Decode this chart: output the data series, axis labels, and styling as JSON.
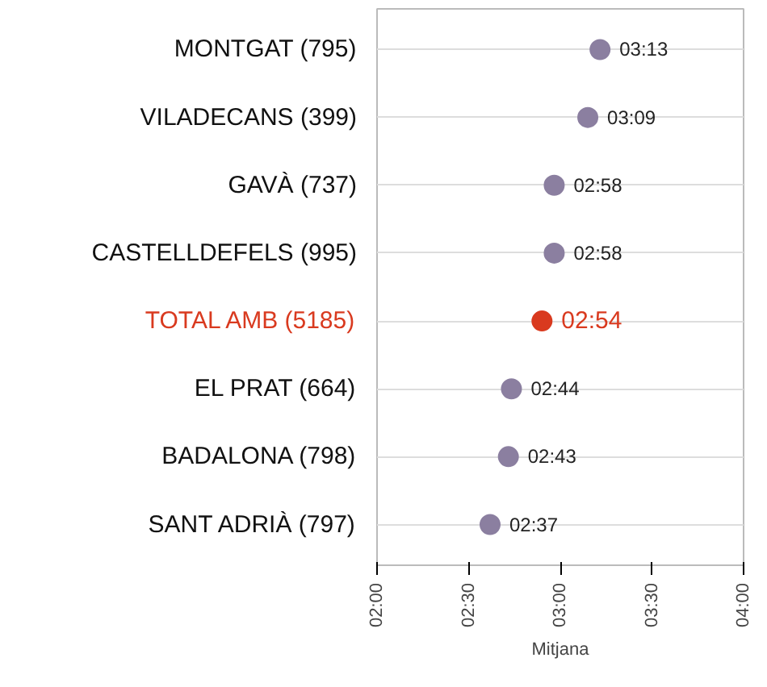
{
  "chart_data": {
    "type": "scatter",
    "xlabel": "Mitjana",
    "orientation": "horizontal",
    "categories": [
      "MONTGAT (795)",
      "VILADECANS (399)",
      "GAVÀ (737)",
      "CASTELLDEFELS (995)",
      "TOTAL AMB (5185)",
      "EL PRAT (664)",
      "BADALONA (798)",
      "SANT ADRIÀ (797)"
    ],
    "values": [
      3.2167,
      3.15,
      2.9667,
      2.9667,
      2.9,
      2.7333,
      2.7167,
      2.6167
    ],
    "value_labels": [
      "03:13",
      "03:09",
      "02:58",
      "02:58",
      "02:54",
      "02:44",
      "02:43",
      "02:37"
    ],
    "color": "#8b7fa0",
    "colors": [
      "#8b7fa0",
      "#8b7fa0",
      "#8b7fa0",
      "#8b7fa0",
      "#d93a1f",
      "#8b7fa0",
      "#8b7fa0",
      "#8b7fa0"
    ],
    "xlim": [
      2,
      4
    ],
    "xticks": [
      {
        "value": 2,
        "label": "02:00"
      },
      {
        "value": 2.5,
        "label": "02:30"
      },
      {
        "value": 3,
        "label": "03:00"
      },
      {
        "value": 3.5,
        "label": "03:30"
      },
      {
        "value": 4,
        "label": "04:00"
      }
    ],
    "grid": "y",
    "marker": "circle"
  }
}
